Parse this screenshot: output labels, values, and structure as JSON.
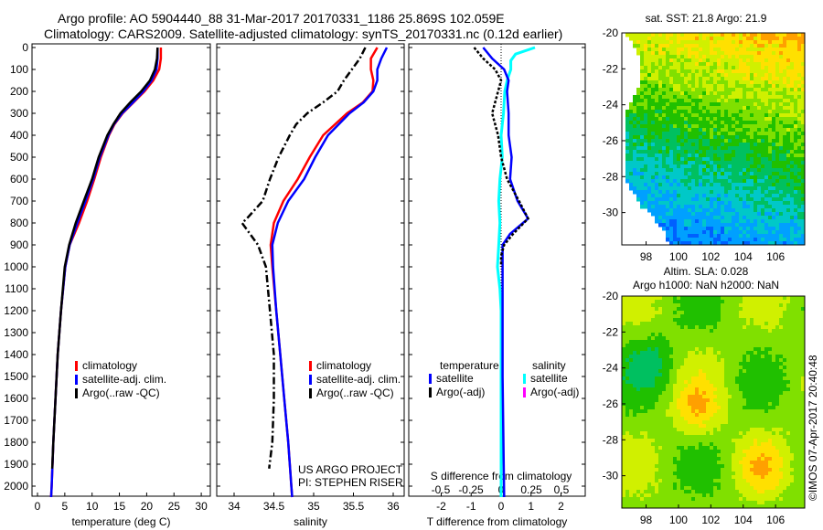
{
  "header": {
    "line1": "Argo profile: AO 5904440_88 31-Mar-2017 20170331_1186 25.869S 102.059E",
    "line2": "Climatology: CARS2009. Satellite-adjusted climatology: synTS_20170331.nc (0.12d earlier)"
  },
  "colors": {
    "climatology": "#ff0000",
    "satellite": "#0000ff",
    "argo": "#000000",
    "sal_satellite": "#00ffff",
    "sal_argo": "#ff00ff"
  },
  "chart_data": [
    {
      "type": "line",
      "title": "",
      "xlabel": "temperature (deg C)",
      "ylabel": "",
      "xlim": [
        -1,
        31
      ],
      "ylim": [
        2080,
        0
      ],
      "xticks": [
        "0",
        "5",
        "10",
        "15",
        "20",
        "25",
        "30"
      ],
      "yticks": [
        "0",
        "100",
        "200",
        "300",
        "400",
        "500",
        "600",
        "700",
        "800",
        "900",
        "1000",
        "1100",
        "1200",
        "1300",
        "1400",
        "1500",
        "1600",
        "1700",
        "1800",
        "1900",
        "2000"
      ],
      "legend": [
        "climatology",
        "satellite-adj. clim.",
        "Argo(..raw -QC)"
      ],
      "series": [
        {
          "name": "climatology",
          "depth": [
            0,
            50,
            100,
            150,
            200,
            250,
            300,
            350,
            400,
            500,
            600,
            700,
            800,
            900,
            1000,
            1200,
            1400,
            1600,
            1800,
            2000,
            2050
          ],
          "values": [
            22.6,
            22.6,
            22.3,
            21.2,
            19.6,
            17.6,
            15.6,
            14.1,
            13.1,
            11.6,
            10.4,
            9.1,
            7.6,
            5.9,
            5.1,
            4.3,
            3.7,
            3.3,
            2.9,
            2.6,
            2.5
          ]
        },
        {
          "name": "satellite-adj. clim.",
          "depth": [
            0,
            50,
            100,
            150,
            200,
            250,
            300,
            350,
            400,
            500,
            600,
            700,
            800,
            900,
            1000,
            1200,
            1400,
            1600,
            1800,
            2000,
            2050
          ],
          "values": [
            22.0,
            22.0,
            21.8,
            20.9,
            19.4,
            17.5,
            15.5,
            14.0,
            13.0,
            11.4,
            10.2,
            8.8,
            7.3,
            5.9,
            5.1,
            4.3,
            3.7,
            3.3,
            2.9,
            2.6,
            2.5
          ]
        },
        {
          "name": "Argo(..raw -QC)",
          "depth": [
            0,
            50,
            100,
            150,
            200,
            250,
            300,
            350,
            400,
            500,
            600,
            700,
            800,
            900,
            1000,
            1200,
            1400,
            1600,
            1800,
            1920
          ],
          "values": [
            22.0,
            21.9,
            21.5,
            20.6,
            19.0,
            17.0,
            15.2,
            13.9,
            12.8,
            11.2,
            10.0,
            8.5,
            7.0,
            5.8,
            5.0,
            4.3,
            3.7,
            3.3,
            2.9,
            2.7
          ]
        }
      ]
    },
    {
      "type": "line",
      "xlabel": "salinity",
      "xlim": [
        33.8,
        36.1
      ],
      "ylim": [
        2080,
        0
      ],
      "xticks": [
        "34",
        "34.5",
        "35",
        "35.5",
        "36"
      ],
      "legend": [
        "climatology",
        "satellite-adj. clim.",
        "Argo(..raw -QC)"
      ],
      "annotation": [
        "US ARGO PROJECT",
        "PI: STEPHEN RISER"
      ],
      "series": [
        {
          "name": "climatology",
          "depth": [
            0,
            50,
            100,
            150,
            200,
            250,
            300,
            400,
            500,
            600,
            700,
            800,
            900,
            1000,
            1200,
            1400,
            1600,
            1800,
            2000,
            2050
          ],
          "values": [
            35.8,
            35.72,
            35.72,
            35.75,
            35.74,
            35.62,
            35.42,
            35.12,
            34.95,
            34.8,
            34.62,
            34.5,
            34.46,
            34.48,
            34.53,
            34.58,
            34.63,
            34.68,
            34.72,
            34.73
          ]
        },
        {
          "name": "satellite-adj. clim.",
          "depth": [
            0,
            50,
            100,
            150,
            200,
            250,
            300,
            400,
            500,
            600,
            700,
            800,
            900,
            1000,
            1200,
            1400,
            1600,
            1800,
            2000,
            2050
          ],
          "values": [
            35.92,
            35.85,
            35.8,
            35.8,
            35.75,
            35.63,
            35.45,
            35.18,
            35.02,
            34.88,
            34.68,
            34.55,
            34.48,
            34.49,
            34.53,
            34.58,
            34.63,
            34.68,
            34.72,
            34.73
          ]
        },
        {
          "name": "Argo(..raw -QC)",
          "depth": [
            0,
            50,
            100,
            150,
            200,
            250,
            300,
            350,
            400,
            500,
            600,
            700,
            780,
            800,
            850,
            900,
            1000,
            1200,
            1400,
            1600,
            1800,
            1920
          ],
          "values": [
            35.65,
            35.58,
            35.48,
            35.38,
            35.3,
            35.12,
            34.92,
            34.78,
            34.7,
            34.56,
            34.45,
            34.36,
            34.16,
            34.1,
            34.2,
            34.3,
            34.4,
            34.45,
            34.5,
            34.5,
            34.48,
            34.44
          ]
        }
      ]
    },
    {
      "type": "line",
      "xlabel": "T difference from climatology",
      "x2label": "S difference from climatology",
      "xlim": [
        -3.0,
        2.9
      ],
      "x2lim": [
        -0.75,
        0.725
      ],
      "ylim": [
        2080,
        0
      ],
      "xticks": [
        "-2",
        "-1",
        "0",
        "1",
        "2"
      ],
      "x2ticks": [
        "-0.5",
        "-0.25",
        "0",
        "0.25",
        "0.5"
      ],
      "legend_headers": [
        "temperature",
        "salinity"
      ],
      "legend": [
        "satellite",
        "Argo(-adj)",
        "satellite",
        "Argo(-adj)"
      ],
      "series": [
        {
          "name": "temperature satellite",
          "depth": [
            0,
            50,
            100,
            150,
            200,
            300,
            400,
            500,
            600,
            700,
            780,
            850,
            900,
            1000,
            1200,
            1500,
            2050
          ],
          "values": [
            -0.6,
            -0.3,
            0.1,
            0.25,
            0.2,
            0.25,
            0.25,
            0.35,
            0.3,
            0.55,
            0.9,
            0.3,
            0.05,
            0.05,
            0.05,
            0.05,
            0.1
          ]
        },
        {
          "name": "temperature Argo(-adj)",
          "depth": [
            0,
            50,
            100,
            150,
            200,
            300,
            400,
            500,
            600,
            700,
            780,
            850,
            900,
            950,
            1000
          ],
          "values": [
            -0.9,
            -0.6,
            -0.2,
            0.0,
            -0.1,
            -0.3,
            -0.1,
            0.0,
            0.2,
            0.6,
            0.9,
            0.4,
            0.1,
            0.0,
            0.0
          ]
        },
        {
          "name": "salinity satellite",
          "depth": [
            0,
            30,
            60,
            100,
            150,
            200,
            300,
            400,
            500,
            600,
            700,
            800,
            900,
            1000,
            1100,
            1200,
            1500,
            2050
          ],
          "values": [
            0.28,
            0.12,
            0.08,
            0.08,
            0.05,
            0.03,
            0.02,
            0.0,
            0.01,
            -0.01,
            -0.02,
            -0.01,
            -0.02,
            -0.03,
            -0.01,
            0.0,
            0.0,
            0.0
          ]
        }
      ]
    }
  ],
  "maps": {
    "sst": {
      "title": "sat. SST: 21.8 Argo: 21.9",
      "xticks": [
        "98",
        "100",
        "102",
        "104",
        "106"
      ],
      "yticks": [
        "-20",
        "-22",
        "-24",
        "-26",
        "-28",
        "-30"
      ]
    },
    "sla": {
      "title1": "Altim. SLA: 0.028",
      "title2": "Argo h1000: NaN h2000: NaN",
      "xticks": [
        "98",
        "100",
        "102",
        "104",
        "106"
      ],
      "yticks": [
        "-20",
        "-22",
        "-24",
        "-26",
        "-28",
        "-30"
      ]
    }
  },
  "footer": {
    "credit": "©IMOS 07-Apr-2017 20:40:48"
  }
}
